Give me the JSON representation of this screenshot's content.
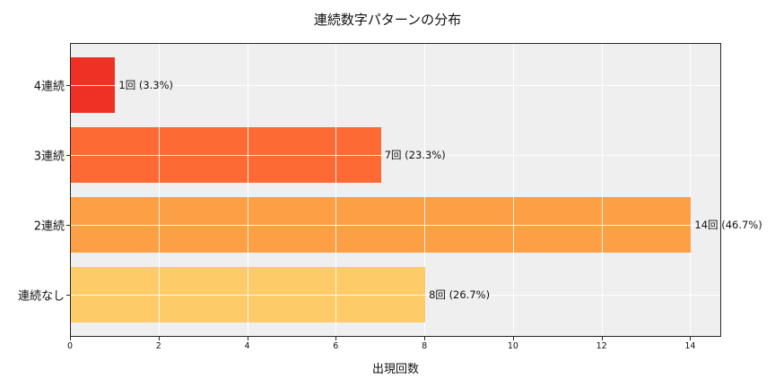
{
  "chart_data": {
    "type": "bar",
    "orientation": "horizontal",
    "title": "連続数字パターンの分布",
    "xlabel": "出現回数",
    "ylabel": "",
    "categories": [
      "4連続",
      "3連続",
      "2連続",
      "連続なし"
    ],
    "values": [
      1,
      7,
      14,
      8
    ],
    "percentages": [
      3.3,
      23.3,
      46.7,
      26.7
    ],
    "bar_labels": [
      "1回 (3.3%)",
      "7回 (23.3%)",
      "14回 (46.7%)",
      "8回 (26.7%)"
    ],
    "colors": [
      "#ee3124",
      "#fd6a33",
      "#fd9f45",
      "#fecb69"
    ],
    "xlim": [
      0,
      14.7
    ],
    "xticks": [
      0,
      2,
      4,
      6,
      8,
      10,
      12,
      14
    ],
    "grid": true,
    "background": "#efefef",
    "legend": null
  }
}
